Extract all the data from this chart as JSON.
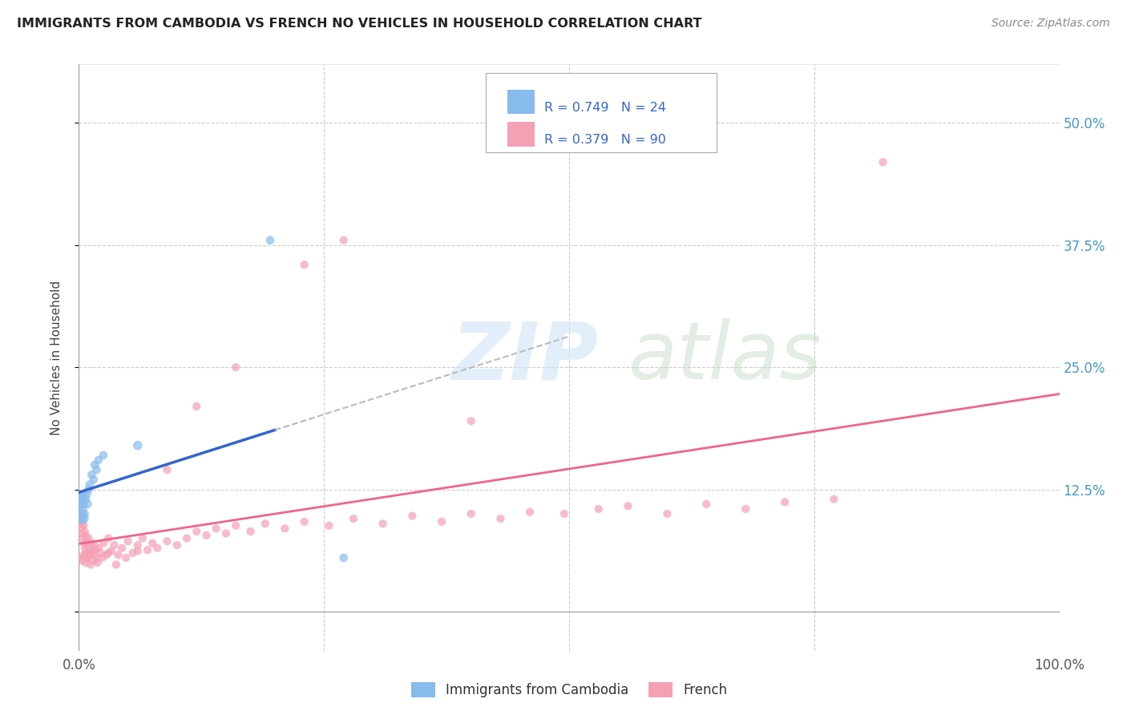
{
  "title": "IMMIGRANTS FROM CAMBODIA VS FRENCH NO VEHICLES IN HOUSEHOLD CORRELATION CHART",
  "source": "Source: ZipAtlas.com",
  "ylabel": "No Vehicles in Household",
  "xlim": [
    0.0,
    1.0
  ],
  "ylim": [
    -0.04,
    0.56
  ],
  "xticks": [
    0.0,
    0.25,
    0.5,
    0.75,
    1.0
  ],
  "xticklabels": [
    "0.0%",
    "",
    "",
    "",
    "100.0%"
  ],
  "yticks": [
    0.0,
    0.125,
    0.25,
    0.375,
    0.5
  ],
  "yticklabels": [
    "",
    "12.5%",
    "25.0%",
    "37.5%",
    "50.0%"
  ],
  "background_color": "#ffffff",
  "grid_color": "#cccccc",
  "legend_R1": "0.749",
  "legend_N1": "24",
  "legend_R2": "0.379",
  "legend_N2": "90",
  "color_cambodia": "#88bbee",
  "color_french": "#f5a0b5",
  "line_color_cambodia": "#3366cc",
  "line_color_french": "#ee6688",
  "dashed_line_color": "#bbbbbb",
  "cambodia_x": [
    0.001,
    0.002,
    0.002,
    0.003,
    0.003,
    0.004,
    0.004,
    0.005,
    0.005,
    0.006,
    0.007,
    0.008,
    0.009,
    0.01,
    0.011,
    0.013,
    0.015,
    0.016,
    0.018,
    0.02,
    0.025,
    0.06,
    0.195,
    0.27
  ],
  "cambodia_y": [
    0.115,
    0.095,
    0.11,
    0.1,
    0.115,
    0.105,
    0.12,
    0.095,
    0.11,
    0.1,
    0.115,
    0.12,
    0.11,
    0.125,
    0.13,
    0.14,
    0.135,
    0.15,
    0.145,
    0.155,
    0.16,
    0.17,
    0.38,
    0.055
  ],
  "cambodia_size": [
    200,
    100,
    80,
    80,
    60,
    60,
    60,
    80,
    60,
    60,
    60,
    60,
    60,
    60,
    60,
    60,
    60,
    60,
    60,
    60,
    60,
    70,
    60,
    60
  ],
  "french_x": [
    0.001,
    0.002,
    0.002,
    0.003,
    0.003,
    0.004,
    0.004,
    0.005,
    0.005,
    0.006,
    0.006,
    0.007,
    0.007,
    0.008,
    0.008,
    0.009,
    0.01,
    0.01,
    0.011,
    0.012,
    0.013,
    0.014,
    0.015,
    0.016,
    0.017,
    0.018,
    0.02,
    0.022,
    0.025,
    0.028,
    0.03,
    0.033,
    0.036,
    0.04,
    0.044,
    0.05,
    0.055,
    0.06,
    0.065,
    0.07,
    0.075,
    0.08,
    0.09,
    0.1,
    0.11,
    0.12,
    0.13,
    0.14,
    0.15,
    0.16,
    0.175,
    0.19,
    0.21,
    0.23,
    0.255,
    0.28,
    0.31,
    0.34,
    0.37,
    0.4,
    0.43,
    0.46,
    0.495,
    0.53,
    0.56,
    0.6,
    0.64,
    0.68,
    0.72,
    0.77,
    0.002,
    0.003,
    0.005,
    0.007,
    0.009,
    0.012,
    0.015,
    0.019,
    0.024,
    0.03,
    0.038,
    0.048,
    0.06,
    0.09,
    0.12,
    0.16,
    0.23,
    0.4,
    0.82,
    0.27
  ],
  "french_y": [
    0.09,
    0.085,
    0.1,
    0.09,
    0.08,
    0.095,
    0.075,
    0.088,
    0.07,
    0.082,
    0.065,
    0.078,
    0.06,
    0.072,
    0.055,
    0.068,
    0.075,
    0.058,
    0.065,
    0.06,
    0.07,
    0.062,
    0.058,
    0.068,
    0.063,
    0.055,
    0.065,
    0.06,
    0.07,
    0.058,
    0.075,
    0.062,
    0.068,
    0.058,
    0.065,
    0.072,
    0.06,
    0.068,
    0.075,
    0.063,
    0.07,
    0.065,
    0.072,
    0.068,
    0.075,
    0.082,
    0.078,
    0.085,
    0.08,
    0.088,
    0.082,
    0.09,
    0.085,
    0.092,
    0.088,
    0.095,
    0.09,
    0.098,
    0.092,
    0.1,
    0.095,
    0.102,
    0.1,
    0.105,
    0.108,
    0.1,
    0.11,
    0.105,
    0.112,
    0.115,
    0.055,
    0.052,
    0.058,
    0.05,
    0.055,
    0.048,
    0.052,
    0.05,
    0.055,
    0.06,
    0.048,
    0.055,
    0.062,
    0.145,
    0.21,
    0.25,
    0.355,
    0.195,
    0.46,
    0.38
  ],
  "watermark_zip": "ZIP",
  "watermark_atlas": "atlas",
  "watermark_color_zip": "#d0e4f5",
  "watermark_color_atlas": "#c8dcc8"
}
